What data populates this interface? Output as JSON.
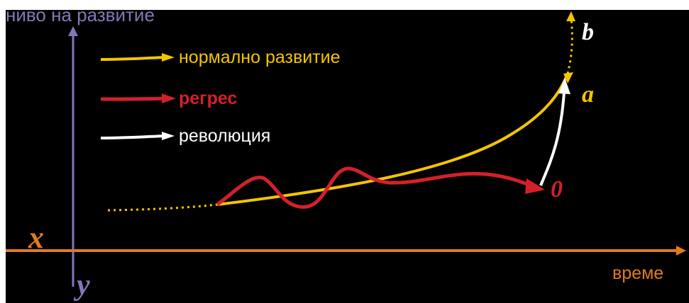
{
  "axes": {
    "y_label": "ниво на развитие",
    "x_label": "време",
    "origin_x_label": "x",
    "origin_y_label": "y"
  },
  "legend": [
    {
      "key": "normal",
      "label": "нормално развитие",
      "color": "#f5c400"
    },
    {
      "key": "regress",
      "label": "регрес",
      "color": "#d4202a"
    },
    {
      "key": "revolution",
      "label": "революция",
      "color": "#ffffff"
    }
  ],
  "points": {
    "a": "a",
    "b": "b",
    "zero": "0"
  },
  "colors": {
    "background": "#000000",
    "y_axis": "#8278b8",
    "x_axis": "#e07b1c",
    "normal": "#f5c400",
    "regress": "#d4202a",
    "revolution": "#ffffff",
    "point_b": "#ffffff",
    "point_a": "#f5c400",
    "point_zero": "#d4202a"
  }
}
